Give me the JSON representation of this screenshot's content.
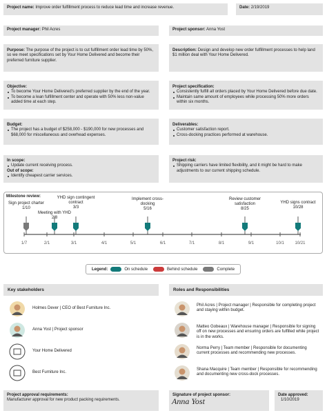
{
  "project_name": {
    "label": "Project name:",
    "text": "Improve order fulfillment process to reduce lead time and increase revenue."
  },
  "date": {
    "label": "Date:",
    "text": "2/19/2019"
  },
  "project_manager": {
    "label": "Project manager:",
    "text": "Phil Acres"
  },
  "project_sponsor": {
    "label": "Project sponsor:",
    "text": "Anna Yost"
  },
  "purpose": {
    "label": "Purpose:",
    "text": "The purpose of the project is to cut fulfillment order lead time by 50%, so we meet specifications set by Your Home Delivered and become their preferred furniture supplier."
  },
  "description": {
    "label": "Description:",
    "text": "Design and develop new order fulfillment processes to help land $1 million deal with Your Home Delivered."
  },
  "objective": {
    "label": "Objective:",
    "items": [
      "To become Your Home Delivered's preferred supplier by the end of the year.",
      "To become a lean fulfillment center and operate with 50% less non-value added time at each step."
    ]
  },
  "specification": {
    "label": "Project specification:",
    "items": [
      "Consistently fulfill all orders placed by Your Home Delivered before due date.",
      "Maintain same amount of employees while processing 50% more orders within six months."
    ]
  },
  "budget": {
    "label": "Budget:",
    "items": [
      "The project has a budget of $258,000 - $190,000 for new processes and $68,000 for miscellaneous and overhead expenses."
    ]
  },
  "deliverables": {
    "label": "Deliverables:",
    "items": [
      "Customer satisfaction report.",
      "Cross-docking practices performed at warehouse."
    ]
  },
  "scope": {
    "in_label": "In scope:",
    "in_items": [
      "Update current receiving process."
    ],
    "out_label": "Out of scope:",
    "out_items": [
      "Identify cheapest carrier services."
    ]
  },
  "risk": {
    "label": "Project risk:",
    "items": [
      "Shipping carriers have limited flexibility, and it might be hard to make adjustments to our current shipping schedule."
    ]
  },
  "milestones": {
    "title": "Milestone review:",
    "items": [
      {
        "label": "Sign project charter",
        "date": "1/10"
      },
      {
        "label": "Meeting with YHD",
        "date": "2/8"
      },
      {
        "label": "YHD sign contingent contract",
        "date": "3/3"
      },
      {
        "label": "Implement cross-docking",
        "date": "5/16"
      },
      {
        "label": "Review customer satisfaction",
        "date": "8/25"
      },
      {
        "label": "YHD signs contract",
        "date": "10/28"
      }
    ],
    "axis": [
      "1/7",
      "2/1",
      "3/1",
      "4/1",
      "5/1",
      "6/1",
      "7/1",
      "8/1",
      "9/1",
      "10/1",
      "10/21"
    ]
  },
  "legend": {
    "title": "Legend:",
    "items": [
      "On schedule",
      "Behind schedule",
      "Complete"
    ]
  },
  "stakeholders": {
    "title": "Key stakeholders",
    "items": [
      "Holmes Dever | CEO of Best Furniture Inc.",
      "Anna Yost | Project sponsor",
      "Your Home Delivered",
      "Best Furniture Inc."
    ]
  },
  "roles": {
    "title": "Roles and Responsibilities",
    "items": [
      "Phil Acres | Project manager | Responsible for completing project and staying within budget.",
      "Matteo Gobeaux | Warehouse manager | Responsible for signing off on new processes and ensuring orders are fulfilled while project is in the works.",
      "Norma Perry | Team member | Responsible for documenting current processes and recommending new processes.",
      "Shana Macquire | Team member | Responsible for recommending and documenting new cross-dock processes."
    ]
  },
  "approval": {
    "label": "Project approval requirements:",
    "text": "Manufacturer approval for new product packing requirements."
  },
  "signature": {
    "label": "Signature of project sponsor:",
    "text": "Anna Yost"
  },
  "date_approved": {
    "label": "Date approved:",
    "text": "1/10/2019"
  }
}
